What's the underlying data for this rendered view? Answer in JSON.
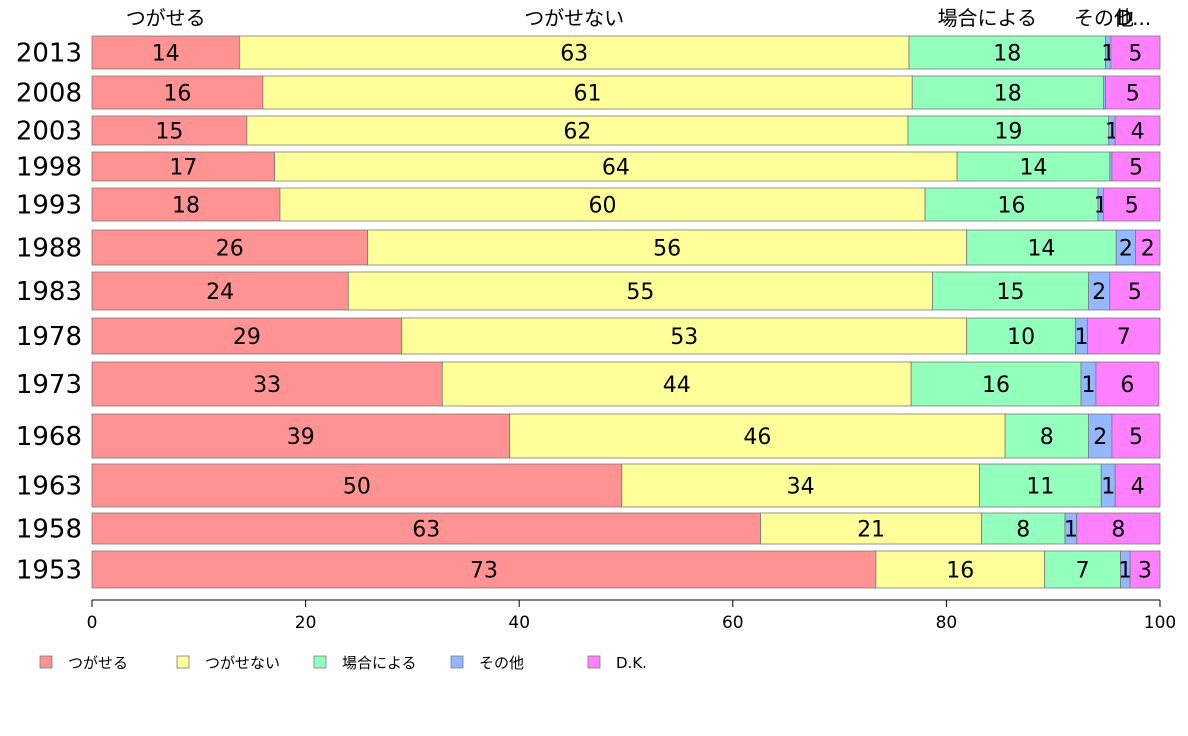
{
  "chart_data": {
    "type": "bar",
    "orientation": "horizontal",
    "stacked": true,
    "categories": [
      "2013",
      "2008",
      "2003",
      "1998",
      "1993",
      "1988",
      "1983",
      "1978",
      "1973",
      "1968",
      "1963",
      "1958",
      "1953"
    ],
    "series": [
      {
        "name": "つがせる",
        "color": "#ff9393",
        "values": [
          14,
          16,
          15,
          17,
          18,
          26,
          24,
          29,
          33,
          39,
          50,
          63,
          73
        ]
      },
      {
        "name": "つがせない",
        "color": "#ffff9a",
        "values": [
          63,
          61,
          62,
          64,
          60,
          56,
          55,
          53,
          44,
          46,
          34,
          21,
          16
        ]
      },
      {
        "name": "場合による",
        "color": "#93ffbd",
        "values": [
          18,
          18,
          19,
          14,
          16,
          14,
          15,
          10,
          16,
          8,
          11,
          8,
          7
        ]
      },
      {
        "name": "その他",
        "color": "#93b8ff",
        "values": [
          1,
          0,
          1,
          0,
          1,
          2,
          2,
          1,
          1,
          2,
          1,
          1,
          1
        ]
      },
      {
        "name": "D.K.",
        "color": "#ff80ff",
        "values": [
          5,
          5,
          4,
          5,
          5,
          2,
          5,
          7,
          6,
          5,
          4,
          8,
          3
        ]
      }
    ],
    "series_value_labels": [
      [
        "14",
        "16",
        "15",
        "17",
        "18",
        "26",
        "24",
        "29",
        "33",
        "39",
        "50",
        "63",
        "73"
      ],
      [
        "63",
        "61",
        "62",
        "64",
        "60",
        "56",
        "55",
        "53",
        "44",
        "46",
        "34",
        "21",
        "16"
      ],
      [
        "18",
        "18",
        "19",
        "14",
        "16",
        "14",
        "15",
        "10",
        "16",
        "8",
        "11",
        "8",
        "7"
      ],
      [
        "1",
        "",
        "1",
        "",
        "1",
        "2",
        "2",
        "1",
        "1",
        "2",
        "1",
        "1",
        "1"
      ],
      [
        "5",
        "5",
        "4",
        "5",
        "5",
        "2",
        "5",
        "7",
        "6",
        "5",
        "4",
        "8",
        "3"
      ]
    ],
    "segment_widths": [
      [
        13.8,
        16.0,
        14.5,
        17.1,
        17.6,
        25.8,
        24.0,
        29.0,
        32.8,
        39.1,
        49.6,
        62.6,
        73.4
      ],
      [
        62.7,
        60.8,
        61.9,
        63.9,
        60.4,
        56.1,
        54.7,
        52.9,
        43.9,
        46.4,
        33.5,
        20.7,
        15.8
      ],
      [
        18.4,
        17.9,
        18.8,
        14.3,
        16.2,
        14.0,
        14.6,
        10.2,
        15.9,
        7.8,
        11.4,
        7.8,
        7.1
      ],
      [
        0.5,
        0.2,
        0.6,
        0.2,
        0.5,
        1.8,
        2.0,
        1.1,
        1.4,
        2.2,
        1.3,
        1.1,
        0.9
      ],
      [
        4.6,
        5.1,
        4.2,
        4.5,
        5.3,
        2.3,
        4.7,
        6.8,
        5.9,
        4.5,
        4.2,
        7.8,
        2.8
      ]
    ],
    "top_headers": [
      "つがせる",
      "つがせない",
      "場合による",
      "その他",
      "D.K."
    ],
    "xlim": [
      0,
      100
    ],
    "x_ticks": [
      "0",
      "20",
      "40",
      "60",
      "80",
      "100"
    ],
    "legend_position": "bottom-left",
    "grid": false
  }
}
